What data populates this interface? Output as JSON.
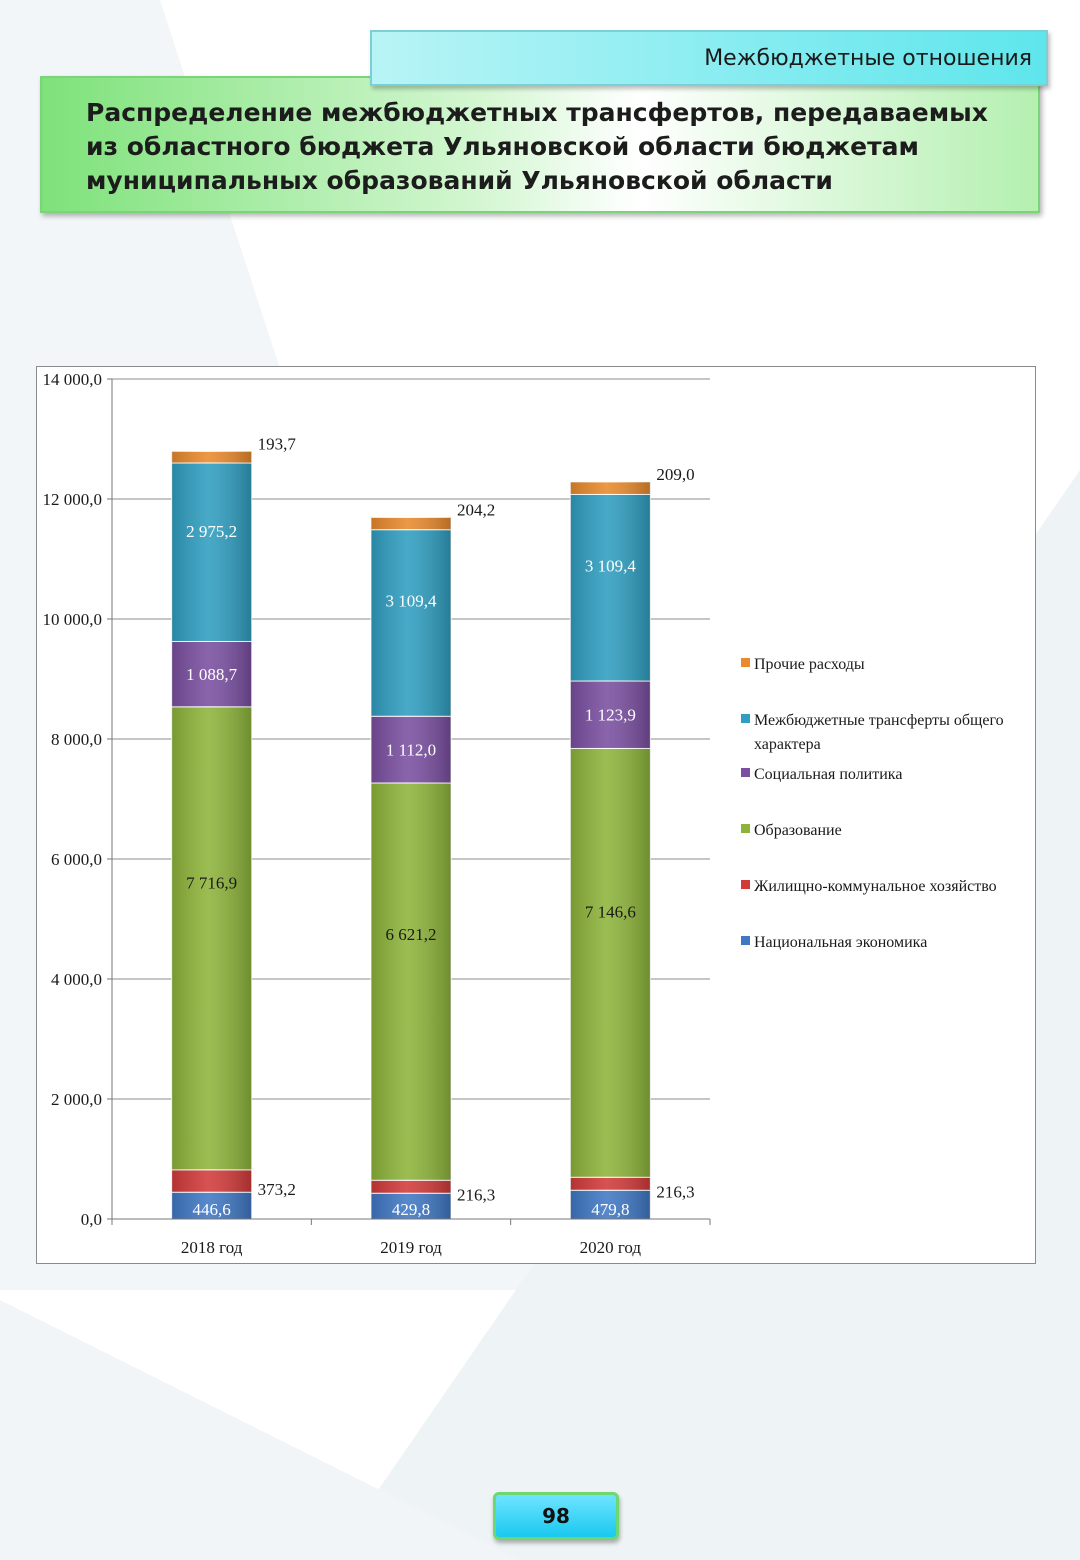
{
  "header": {
    "section_tab": "Межбюджетные отношения",
    "title": "Распределение межбюджетных трансфертов, передаваемых из областного бюджета Ульяновской области бюджетам муниципальных образований Ульяновской области"
  },
  "page_number": "98",
  "chart_data": {
    "type": "bar",
    "stacked": true,
    "title": "",
    "xlabel": "",
    "ylabel": "",
    "ylim": [
      0,
      14000
    ],
    "yticks": [
      "0,0",
      "2 000,0",
      "4 000,0",
      "6 000,0",
      "8 000,0",
      "10 000,0",
      "12 000,0",
      "14 000,0"
    ],
    "grid": true,
    "legend_position": "right",
    "categories": [
      "2018 год",
      "2019 год",
      "2020 год"
    ],
    "series": [
      {
        "name": "Национальная экономика",
        "color": "#3f78c4",
        "values": [
          446.6,
          429.8,
          479.8
        ],
        "labels": [
          "446,6",
          "429,8",
          "479,8"
        ]
      },
      {
        "name": "Жилищно-коммунальное хозяйство",
        "color": "#d23a3a",
        "values": [
          373.2,
          216.3,
          216.3
        ],
        "labels": [
          "373,2",
          "216,3",
          "216,3"
        ]
      },
      {
        "name": "Образование",
        "color": "#8db43a",
        "values": [
          7716.9,
          6621.2,
          7146.6
        ],
        "labels": [
          "7 716,9",
          "6 621,2",
          "7 146,6"
        ]
      },
      {
        "name": "Социальная политика",
        "color": "#7a4fa0",
        "values": [
          1088.7,
          1112.0,
          1123.9
        ],
        "labels": [
          "1 088,7",
          "1 112,0",
          "1 123,9"
        ]
      },
      {
        "name": "Межбюджетные трансферты общего характера",
        "color": "#2f9ec0",
        "values": [
          2975.2,
          3109.4,
          3109.4
        ],
        "labels": [
          "2 975,2",
          "3 109,4",
          "3 109,4"
        ]
      },
      {
        "name": "Прочие расходы",
        "color": "#e98a2c",
        "values": [
          193.7,
          204.2,
          209.0
        ],
        "labels": [
          "193,7",
          "204,2",
          "209,0"
        ]
      }
    ],
    "legend": [
      {
        "label_lines": [
          "Прочие расходы"
        ],
        "color": "#e98a2c"
      },
      {
        "label_lines": [
          "Межбюджетные трансферты общего",
          "характера"
        ],
        "color": "#2f9ec0"
      },
      {
        "label_lines": [
          "Социальная политика"
        ],
        "color": "#7a4fa0"
      },
      {
        "label_lines": [
          "Образование"
        ],
        "color": "#8db43a"
      },
      {
        "label_lines": [
          "Жилищно-коммунальное хозяйство"
        ],
        "color": "#d23a3a"
      },
      {
        "label_lines": [
          "Национальная экономика"
        ],
        "color": "#3f78c4"
      }
    ]
  }
}
